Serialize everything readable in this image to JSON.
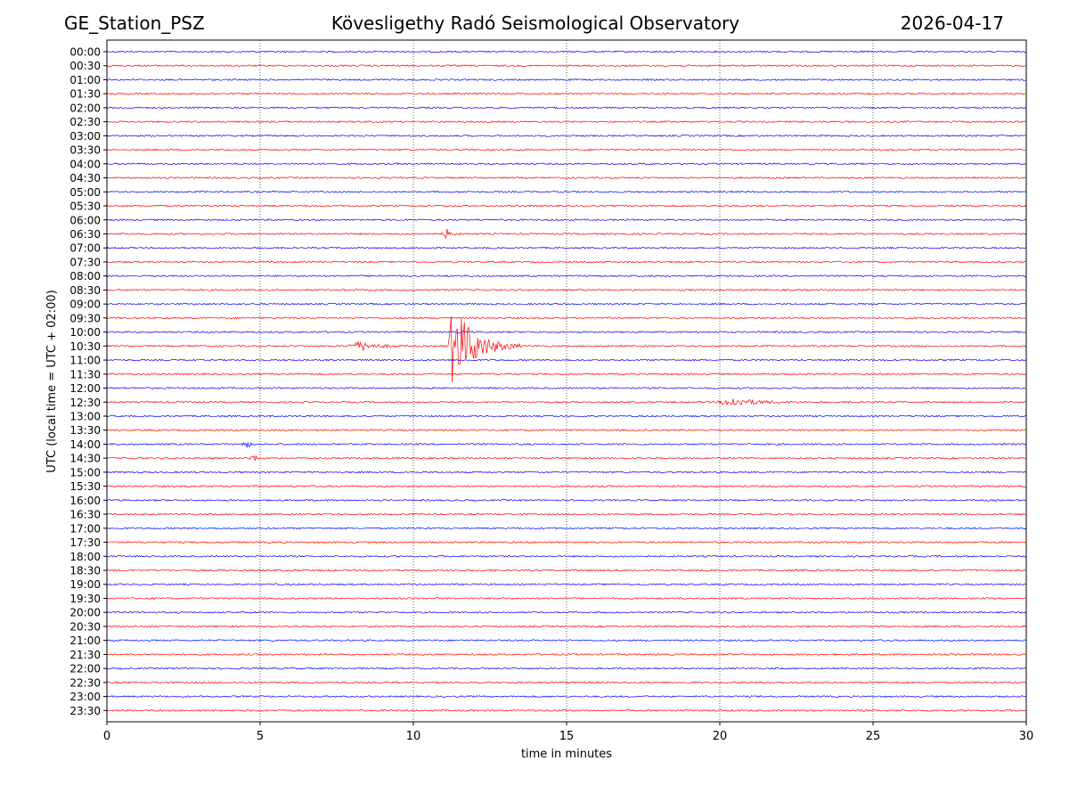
{
  "header": {
    "station": "GE_Station_PSZ",
    "observatory": "Kövesligethy Radó Seismological Observatory",
    "date": "2026-04-17"
  },
  "colors": {
    "even_trace": "#0000ff",
    "odd_trace": "#ff0000",
    "grid": "#000000",
    "axes": "#000000"
  },
  "chart_data": {
    "type": "line",
    "title": "Kövesligethy Radó Seismological Observatory",
    "xlabel": "time in minutes",
    "ylabel": "UTC (local time = UTC + 02:00)",
    "xlim": [
      0,
      30
    ],
    "x_ticks": [
      "0",
      "5",
      "10",
      "15",
      "20",
      "25",
      "30"
    ],
    "grid": "vertical dotted lines at every 5 minutes",
    "row_labels": [
      "00:00",
      "00:30",
      "01:00",
      "01:30",
      "02:00",
      "02:30",
      "03:00",
      "03:30",
      "04:00",
      "04:30",
      "05:00",
      "05:30",
      "06:00",
      "06:30",
      "07:00",
      "07:30",
      "08:00",
      "08:30",
      "09:00",
      "09:30",
      "10:00",
      "10:30",
      "11:00",
      "11:30",
      "12:00",
      "12:30",
      "13:00",
      "13:30",
      "14:00",
      "14:30",
      "15:00",
      "15:30",
      "16:00",
      "16:30",
      "17:00",
      "17:30",
      "18:00",
      "18:30",
      "19:00",
      "19:30",
      "20:00",
      "20:30",
      "21:00",
      "21:30",
      "22:00",
      "22:30",
      "23:00",
      "23:30"
    ],
    "trace_color_pattern": "rows alternate blue (on the hour) and red (on the half hour)",
    "events": [
      {
        "row": "06:30",
        "start_min": 10.9,
        "end_min": 11.6,
        "peak_min": 11.1,
        "relative_amplitude": 0.3
      },
      {
        "row": "10:30",
        "start_min": 7.8,
        "end_min": 9.8,
        "peak_min": 8.3,
        "relative_amplitude": 0.35
      },
      {
        "row": "10:30",
        "start_min": 11.1,
        "end_min": 13.5,
        "peak_min": 11.3,
        "relative_amplitude": 3.1
      },
      {
        "row": "12:30",
        "start_min": 19.9,
        "end_min": 23.0,
        "peak_min": 20.4,
        "relative_amplitude": 0.3
      },
      {
        "row": "14:00",
        "start_min": 4.3,
        "end_min": 4.9,
        "peak_min": 4.6,
        "relative_amplitude": 0.2
      },
      {
        "row": "14:30",
        "start_min": 4.6,
        "end_min": 5.2,
        "peak_min": 4.8,
        "relative_amplitude": 0.2
      }
    ]
  }
}
